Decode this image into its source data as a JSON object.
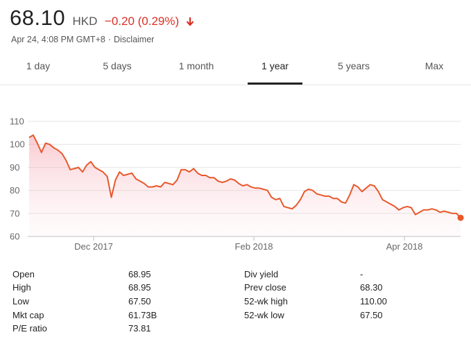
{
  "quote": {
    "price": "68.10",
    "currency": "HKD",
    "change": "−0.20 (0.29%)",
    "direction_icon": "arrow-down-icon",
    "timestamp": "Apr 24, 4:08 PM GMT+8",
    "separator": "·",
    "disclaimer": "Disclaimer",
    "negative_color": "#d93025"
  },
  "tabs": [
    {
      "label": "1 day"
    },
    {
      "label": "5 days"
    },
    {
      "label": "1 month"
    },
    {
      "label": "1 year",
      "active": true
    },
    {
      "label": "5 years"
    },
    {
      "label": "Max"
    }
  ],
  "chart_data": {
    "type": "area",
    "title": "",
    "xlabel": "",
    "ylabel": "",
    "line_color": "#e8582b",
    "grid": true,
    "y_ticks": [
      "110",
      "100",
      "90",
      "80",
      "70",
      "60"
    ],
    "ylim": [
      60,
      110
    ],
    "x_ticks": [
      "Dec 2017",
      "Feb 2018",
      "Apr 2018"
    ],
    "series": [
      {
        "values": [
          103,
          104,
          100.5,
          96.5,
          100.5,
          100,
          98.5,
          97.5,
          96,
          93,
          89,
          89.5,
          90,
          88,
          91,
          92.5,
          90,
          89,
          88,
          86,
          77,
          84.5,
          88,
          86.5,
          87,
          87.5,
          85,
          84,
          83,
          81.5,
          81.5,
          82,
          81.5,
          83.5,
          83,
          82.5,
          84.5,
          89,
          89,
          88,
          89.5,
          87.5,
          86.5,
          86.5,
          85.5,
          85.5,
          84,
          83.5,
          84,
          85,
          84.5,
          83,
          82,
          82.5,
          81.5,
          81,
          81,
          80.5,
          80,
          77,
          76,
          76.5,
          73,
          72.5,
          72,
          73.5,
          76,
          79.5,
          80.5,
          80,
          78.5,
          78,
          77.5,
          77.5,
          76.5,
          76.5,
          75,
          74.5,
          78,
          82.5,
          81.5,
          79.5,
          81,
          82.5,
          82,
          79.5,
          76,
          75,
          74,
          73,
          71.5,
          72.5,
          73,
          72.5,
          69.5,
          70.5,
          71.5,
          71.5,
          72,
          71.5,
          70.5,
          71,
          70.5,
          70,
          70,
          68.1
        ]
      }
    ],
    "last_value": 68.1
  },
  "stats": {
    "left": [
      {
        "label": "Open",
        "value": "68.95"
      },
      {
        "label": "High",
        "value": "68.95"
      },
      {
        "label": "Low",
        "value": "67.50"
      },
      {
        "label": "Mkt cap",
        "value": "61.73B"
      },
      {
        "label": "P/E ratio",
        "value": "73.81"
      }
    ],
    "right": [
      {
        "label": "Div yield",
        "value": "-"
      },
      {
        "label": "Prev close",
        "value": "68.30"
      },
      {
        "label": "52-wk high",
        "value": "110.00"
      },
      {
        "label": "52-wk low",
        "value": "67.50"
      }
    ]
  }
}
